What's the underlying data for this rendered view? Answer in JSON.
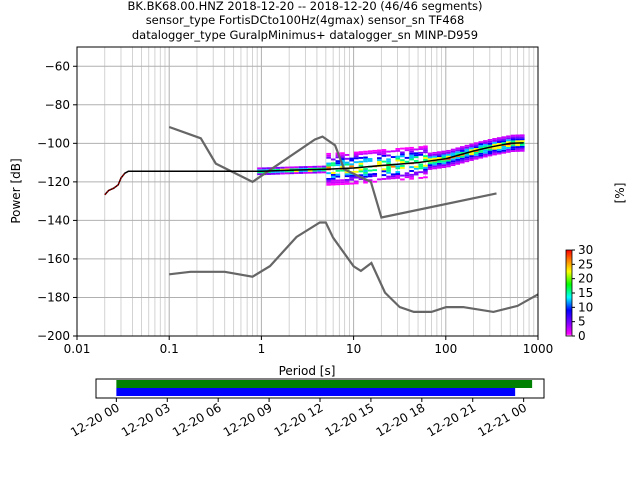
{
  "chart_data": [
    {
      "type": "heatmap",
      "title_lines": [
        "BK.BK68.00.HNZ   2018-12-20 -- 2018-12-20  (46/46 segments)",
        "sensor_type FortisDCto100Hz(4gmax) sensor_sn TF468",
        "datalogger_type GuralpMinimus+ datalogger_sn MINP-D959"
      ],
      "xlabel": "Period [s]",
      "ylabel": "Power [dB]",
      "xscale": "log",
      "xlim": [
        0.01,
        1000
      ],
      "ylim": [
        -200,
        -50
      ],
      "xticks": [
        {
          "v": 0.01,
          "label": "0.01"
        },
        {
          "v": 0.1,
          "label": "0.1"
        },
        {
          "v": 1,
          "label": "1"
        },
        {
          "v": 10,
          "label": "10"
        },
        {
          "v": 100,
          "label": "100"
        },
        {
          "v": 1000,
          "label": "1000"
        }
      ],
      "yticks": [
        {
          "v": -60,
          "label": "−60"
        },
        {
          "v": -80,
          "label": "−80"
        },
        {
          "v": -100,
          "label": "−100"
        },
        {
          "v": -120,
          "label": "−120"
        },
        {
          "v": -140,
          "label": "−140"
        },
        {
          "v": -160,
          "label": "−160"
        },
        {
          "v": -180,
          "label": "−180"
        },
        {
          "v": -200,
          "label": "−200"
        }
      ],
      "grid": true,
      "noise_models": [
        {
          "x": [
            0.1,
            0.22,
            0.32,
            0.8,
            3.8,
            4.6,
            6.3,
            7.9,
            15.4,
            20,
            354.8
          ],
          "y": [
            -91.5,
            -97.4,
            -110.5,
            -120,
            -98,
            -96.5,
            -101,
            -113.5,
            -120,
            -138.5,
            -126
          ]
        },
        {
          "x": [
            0.1,
            0.17,
            0.4,
            0.8,
            1.24,
            2.4,
            4.3,
            5,
            6,
            10,
            12,
            15.6,
            21.9,
            31.6,
            45,
            70,
            101,
            154,
            328,
            600,
            10000
          ],
          "y": [
            -168,
            -166.7,
            -166.7,
            -169.2,
            -163.7,
            -148.6,
            -141.1,
            -141.1,
            -149,
            -163.8,
            -166.2,
            -162.1,
            -177.5,
            -185,
            -187.5,
            -187.5,
            -185,
            -185,
            -187.5,
            -184.4,
            -151.5
          ]
        }
      ],
      "median_line": {
        "x": [
          0.02,
          0.022,
          0.025,
          0.028,
          0.03,
          0.033,
          0.036,
          0.05,
          0.1,
          0.5,
          1,
          2,
          5,
          10,
          20,
          50,
          100,
          200,
          300,
          500,
          700
        ],
        "y": [
          -126.7,
          -124.5,
          -123.3,
          -121.5,
          -118,
          -115.5,
          -114.5,
          -114.5,
          -114.5,
          -114.5,
          -114.5,
          -114,
          -113.5,
          -112.8,
          -111.5,
          -110,
          -108,
          -104,
          -102,
          -100,
          -99.8
        ]
      },
      "colorbar": {
        "label": "[%]",
        "range": [
          0,
          30
        ],
        "ticks": [
          {
            "v": 0,
            "label": "0"
          },
          {
            "v": 5,
            "label": "5"
          },
          {
            "v": 10,
            "label": "10"
          },
          {
            "v": 15,
            "label": "15"
          },
          {
            "v": 20,
            "label": "20"
          },
          {
            "v": 25,
            "label": "25"
          },
          {
            "v": 30,
            "label": "30"
          }
        ]
      },
      "colors": {
        "noise_model": "#666666",
        "median": "#000000",
        "low_noise_start": "#8b0000"
      }
    },
    {
      "type": "timeline",
      "x_start": "2018-12-20 00:00",
      "x_end": "2018-12-21 02:00",
      "ticks": [
        "12-20 00",
        "12-20 03",
        "12-20 06",
        "12-20 09",
        "12-20 12",
        "12-20 15",
        "12-20 18",
        "12-20 21",
        "12-21 00"
      ],
      "bars": [
        {
          "start_hours": 0,
          "end_hours": 24.5,
          "color": "#008000"
        },
        {
          "start_hours": 0,
          "end_hours": 23.5,
          "color": "#0000ff"
        }
      ],
      "span_hours": [
        -1.2,
        25.2
      ]
    }
  ]
}
